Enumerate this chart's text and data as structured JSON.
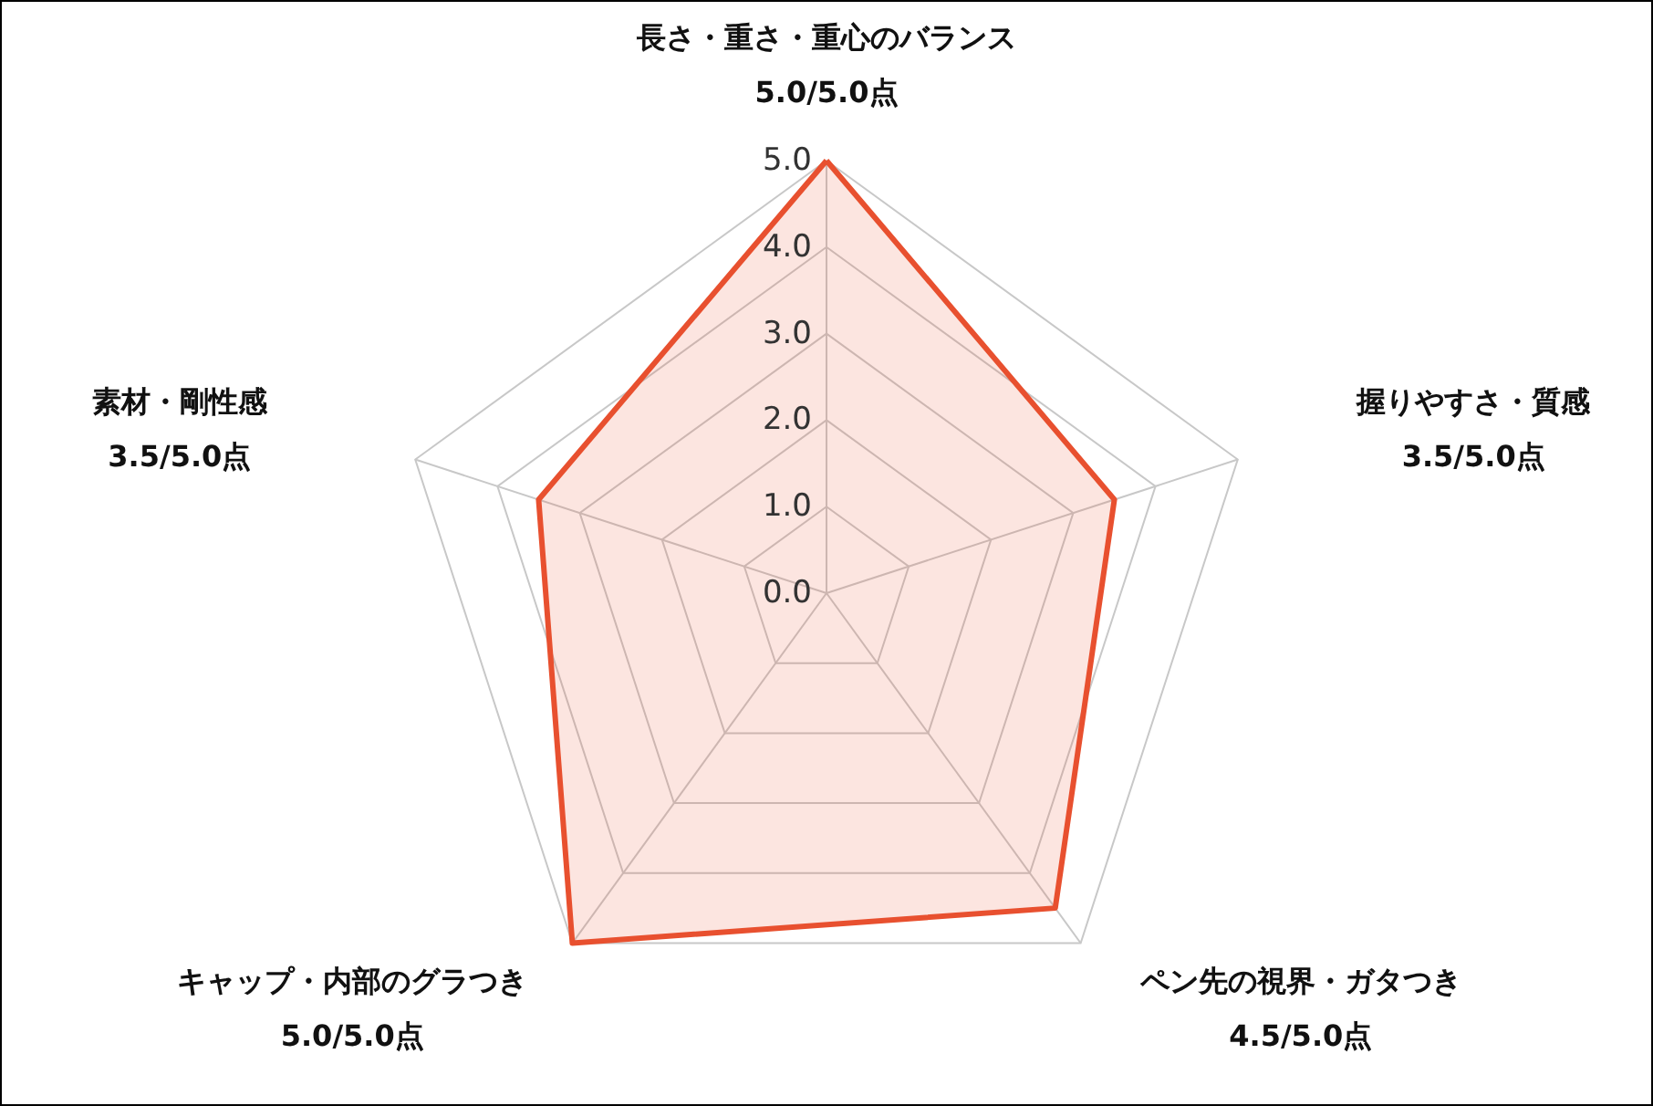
{
  "chart_data": {
    "type": "radar",
    "categories": [
      "長さ・重さ・重心のバランス\n5.0/5.0点",
      "握りやすさ・質感\n3.5/5.0点",
      "ペン先の視界・ガタつき\n4.5/5.0点",
      "キャップ・内部のグラつき\n5.0/5.0点",
      "素材・剛性感\n3.5/5.0点"
    ],
    "series": [
      {
        "color": "#e8502f",
        "values": [
          5.0,
          3.5,
          4.5,
          5.0,
          3.5
        ]
      }
    ],
    "ylim": [
      0,
      5
    ],
    "yticks": [
      {
        "value": 0,
        "label": "0.0"
      },
      {
        "value": 1,
        "label": "1.0"
      },
      {
        "value": 2,
        "label": "2.0"
      },
      {
        "value": 3,
        "label": "3.0"
      },
      {
        "value": 4,
        "label": "4.0"
      },
      {
        "value": 5,
        "label": "5.0"
      }
    ],
    "grid": true
  }
}
